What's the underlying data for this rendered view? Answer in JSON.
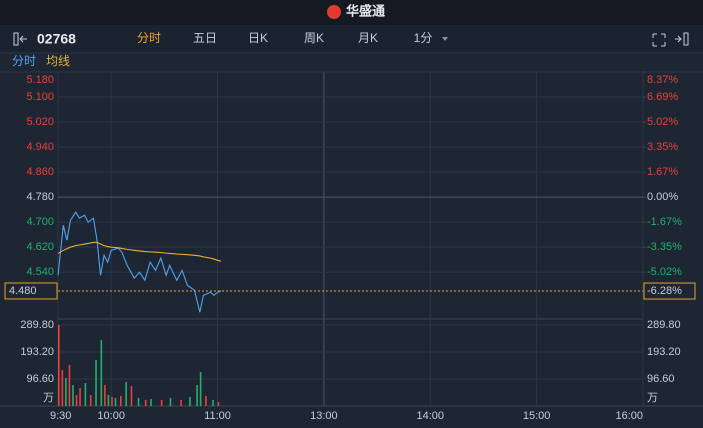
{
  "header": {
    "logo": "华盛通"
  },
  "toolbar": {
    "symbol": "02768",
    "tabs": [
      "分时",
      "五日",
      "日K",
      "周K",
      "月K",
      "1分"
    ],
    "active_tab": 0
  },
  "legend": {
    "items": [
      "分时",
      "均线"
    ],
    "colors": [
      "#4ea3f1",
      "#e8b339"
    ]
  },
  "chart_data": [
    {
      "type": "line",
      "x": [
        0,
        3,
        5,
        7,
        10,
        12,
        15,
        17,
        20,
        22,
        24,
        26,
        28,
        30,
        34,
        36,
        39,
        43,
        46,
        49,
        52,
        55,
        58,
        61,
        63,
        67,
        70,
        73,
        77,
        80,
        82,
        86,
        88,
        90,
        92
      ],
      "xlim": [
        0,
        330
      ],
      "xticks": [
        {
          "value": 0,
          "label": "9:30"
        },
        {
          "value": 30,
          "label": "10:00"
        },
        {
          "value": 90,
          "label": "11:00"
        },
        {
          "value": 150,
          "label": "13:00"
        },
        {
          "value": 210,
          "label": "14:00"
        },
        {
          "value": 270,
          "label": "15:00"
        },
        {
          "value": 330,
          "label": "16:00"
        }
      ],
      "series": [
        {
          "name": "分时",
          "color": "#4ea3f1",
          "values": [
            4.53,
            4.69,
            4.642,
            4.706,
            4.732,
            4.713,
            4.722,
            4.7,
            4.713,
            4.642,
            4.53,
            4.594,
            4.572,
            4.61,
            4.617,
            4.604,
            4.562,
            4.521,
            4.54,
            4.514,
            4.572,
            4.546,
            4.585,
            4.53,
            4.562,
            4.514,
            4.546,
            4.498,
            4.482,
            4.412,
            4.466,
            4.476,
            4.466,
            4.476,
            4.48
          ]
        },
        {
          "name": "均线",
          "color": "#e8b339",
          "values": [
            4.6,
            4.61,
            4.615,
            4.62,
            4.625,
            4.627,
            4.63,
            4.632,
            4.635,
            4.635,
            4.63,
            4.625,
            4.622,
            4.62,
            4.618,
            4.616,
            4.613,
            4.61,
            4.608,
            4.606,
            4.605,
            4.604,
            4.603,
            4.601,
            4.6,
            4.598,
            4.597,
            4.596,
            4.594,
            4.592,
            4.589,
            4.585,
            4.582,
            4.578,
            4.575
          ]
        }
      ],
      "ylim": [
        4.4,
        5.18
      ],
      "yticks": [
        {
          "value": 5.18,
          "label": "5.180"
        },
        {
          "value": 5.1,
          "label": "5.100"
        },
        {
          "value": 5.02,
          "label": "5.020"
        },
        {
          "value": 4.94,
          "label": "4.940"
        },
        {
          "value": 4.86,
          "label": "4.860"
        },
        {
          "value": 4.78,
          "label": "4.780"
        },
        {
          "value": 4.7,
          "label": "4.700"
        },
        {
          "value": 4.62,
          "label": "4.620"
        },
        {
          "value": 4.54,
          "label": "4.540"
        }
      ],
      "y2lim": [
        -7.95,
        8.37
      ],
      "y2ticks": [
        {
          "value": 8.37,
          "label": "8.37%"
        },
        {
          "value": 6.69,
          "label": "6.69%"
        },
        {
          "value": 5.02,
          "label": "5.02%"
        },
        {
          "value": 3.35,
          "label": "3.35%"
        },
        {
          "value": 1.67,
          "label": "1.67%"
        },
        {
          "value": 0,
          "label": "0.00%"
        },
        {
          "value": -1.67,
          "label": "-1.67%"
        },
        {
          "value": -3.35,
          "label": "-3.35%"
        },
        {
          "value": -5.02,
          "label": "-5.02%"
        }
      ],
      "last_price": {
        "value": 4.48,
        "label": "4.480"
      },
      "last_change": {
        "value": -6.28,
        "label": "-6.28%"
      }
    },
    {
      "type": "bar",
      "x": [
        0,
        2,
        4,
        6,
        8,
        10,
        12,
        15,
        18,
        21,
        24,
        26,
        28,
        30,
        32,
        35,
        38,
        41,
        45,
        49,
        52,
        58,
        63,
        69,
        74,
        78,
        80,
        83,
        87,
        90
      ],
      "values": [
        289.8,
        128.8,
        100.2,
        146.7,
        75.1,
        39.4,
        64.4,
        82.3,
        39.4,
        164.6,
        236.1,
        75.1,
        39.4,
        32.2,
        28.6,
        35.8,
        85.9,
        71.6,
        28.6,
        21.5,
        25.0,
        21.5,
        28.6,
        21.5,
        32.2,
        75.1,
        121.6,
        35.8,
        21.5,
        14.3
      ],
      "colors": [
        "#e8413b",
        "#e8413b",
        "#20b26c",
        "#e8413b",
        "#20b26c",
        "#e8413b",
        "#e8413b",
        "#20b26c",
        "#e8413b",
        "#20b26c",
        "#20b26c",
        "#e8413b",
        "#20b26c",
        "#e8413b",
        "#20b26c",
        "#e8413b",
        "#20b26c",
        "#e8413b",
        "#20b26c",
        "#e8413b",
        "#20b26c",
        "#e8413b",
        "#20b26c",
        "#e8413b",
        "#20b26c",
        "#20b26c",
        "#20b26c",
        "#e8413b",
        "#20b26c",
        "#e8413b"
      ],
      "xlim": [
        0,
        330
      ],
      "ylim": [
        0,
        289.8
      ],
      "yticks": [
        {
          "value": 289.8,
          "label": "289.80"
        },
        {
          "value": 193.2,
          "label": "193.20"
        },
        {
          "value": 96.6,
          "label": "96.60"
        }
      ],
      "unit": "万"
    }
  ]
}
